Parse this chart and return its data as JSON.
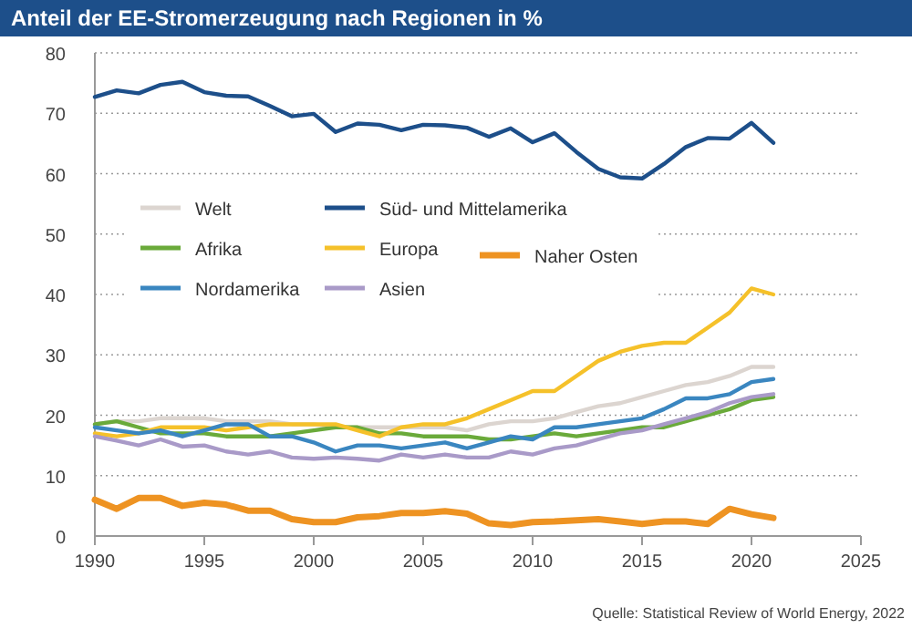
{
  "chart_data": {
    "type": "line",
    "title": "Anteil der EE-Stromerzeugung nach Regionen in %",
    "x": [
      1990,
      1991,
      1992,
      1993,
      1994,
      1995,
      1996,
      1997,
      1998,
      1999,
      2000,
      2001,
      2002,
      2003,
      2004,
      2005,
      2006,
      2007,
      2008,
      2009,
      2010,
      2011,
      2012,
      2013,
      2014,
      2015,
      2016,
      2017,
      2018,
      2019,
      2020,
      2021
    ],
    "xlim": [
      1990,
      2025
    ],
    "xticks": [
      1990,
      1995,
      2000,
      2005,
      2010,
      2015,
      2020,
      2025
    ],
    "ylim": [
      0,
      80
    ],
    "yticks": [
      0,
      10,
      20,
      30,
      40,
      50,
      60,
      70,
      80
    ],
    "grid": "y",
    "legend": "top left",
    "line_style": "solid",
    "marker": "none",
    "annotations": [
      "Quelle: Statistical Review of World Energy, 2022"
    ],
    "series": [
      {
        "name": "Welt",
        "color": "#dcd5d0",
        "values": [
          18.5,
          19,
          19,
          19.5,
          19.5,
          19.5,
          19,
          19,
          19,
          18.5,
          18.5,
          18,
          18,
          18,
          18,
          18,
          18,
          17.5,
          18.5,
          19,
          19,
          19.5,
          20.5,
          21.5,
          22,
          23,
          24,
          25,
          25.5,
          26.5,
          28,
          28
        ]
      },
      {
        "name": "Süd- und Mittelamerika",
        "color": "#1d4f8a",
        "values": [
          72.7,
          73.8,
          73.3,
          74.7,
          75.2,
          73.5,
          72.9,
          72.8,
          71.2,
          69.5,
          69.9,
          66.9,
          68.3,
          68.1,
          67.2,
          68.1,
          68,
          67.6,
          66.1,
          67.5,
          65.2,
          66.7,
          63.6,
          60.8,
          59.4,
          59.2,
          61.6,
          64.4,
          65.9,
          65.8,
          68.4,
          65.1
        ]
      },
      {
        "name": "Afrika",
        "color": "#6aaa3a",
        "values": [
          18.5,
          19,
          18,
          17,
          17,
          17,
          16.5,
          16.5,
          16.5,
          17,
          17.5,
          18,
          18,
          17,
          17,
          16.5,
          16.5,
          16.5,
          16,
          16,
          16.5,
          17,
          16.5,
          17,
          17.5,
          18,
          18,
          19,
          20,
          21,
          22.5,
          23
        ]
      },
      {
        "name": "Europa",
        "color": "#f5c12a",
        "values": [
          17,
          16.5,
          17,
          18,
          18,
          18,
          17.5,
          18,
          18.5,
          18.5,
          18.5,
          18.5,
          17.5,
          16.5,
          18,
          18.5,
          18.5,
          19.5,
          21,
          22.5,
          24,
          24,
          26.5,
          29,
          30.5,
          31.5,
          32,
          32,
          34.5,
          37,
          41,
          40
        ]
      },
      {
        "name": "Naher Osten",
        "color": "#ee9322",
        "values": [
          6,
          4.5,
          6.3,
          6.3,
          5,
          5.5,
          5.2,
          4.2,
          4.2,
          2.8,
          2.3,
          2.3,
          3.1,
          3.3,
          3.8,
          3.8,
          4.1,
          3.7,
          2.1,
          1.8,
          2.3,
          2.4,
          2.6,
          2.8,
          2.4,
          2,
          2.4,
          2.4,
          2,
          4.5,
          3.6,
          3
        ]
      },
      {
        "name": "Nordamerika",
        "color": "#3a86c0",
        "values": [
          18,
          17.5,
          17,
          17.5,
          16.5,
          17.5,
          18.5,
          18.5,
          16.5,
          16.5,
          15.5,
          14,
          15,
          15,
          14.5,
          15,
          15.5,
          14.5,
          15.5,
          16.5,
          16,
          18,
          18,
          18.5,
          19,
          19.5,
          21,
          22.8,
          22.8,
          23.5,
          25.5,
          26
        ]
      },
      {
        "name": "Asien",
        "color": "#a99ac8",
        "values": [
          16.5,
          15.8,
          15,
          16,
          14.8,
          15,
          14,
          13.5,
          14,
          13,
          12.8,
          13,
          12.8,
          12.5,
          13.5,
          13,
          13.5,
          13,
          13,
          14,
          13.5,
          14.5,
          15,
          16,
          17,
          17.5,
          18.5,
          19.5,
          20.5,
          22,
          23,
          23.5
        ]
      }
    ]
  }
}
